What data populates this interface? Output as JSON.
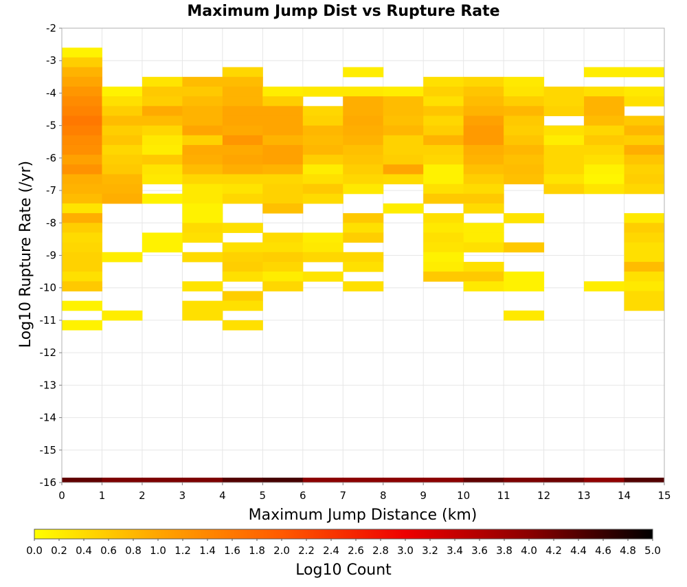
{
  "chart_data": {
    "type": "heatmap",
    "title": "Maximum Jump Dist vs Rupture Rate",
    "xlabel": "Maximum Jump Distance (km)",
    "ylabel": "Log10 Rupture Rate (/yr)",
    "xlim": [
      0,
      15
    ],
    "ylim": [
      -16,
      -2
    ],
    "x_ticks": [
      "0",
      "1",
      "2",
      "3",
      "4",
      "5",
      "6",
      "7",
      "8",
      "9",
      "10",
      "11",
      "12",
      "13",
      "14",
      "15"
    ],
    "y_ticks": [
      "-2",
      "-3",
      "-4",
      "-5",
      "-6",
      "-7",
      "-8",
      "-9",
      "-10",
      "-11",
      "-12",
      "-13",
      "-14",
      "-15",
      "-16"
    ],
    "x_bin_width": 1,
    "y_bin_height": 0.3,
    "grid": true,
    "colorbar": {
      "label": "Log10 Count",
      "range": [
        0,
        5
      ],
      "ticks": [
        "0.0",
        "0.2",
        "0.4",
        "0.6",
        "0.8",
        "1.0",
        "1.2",
        "1.4",
        "1.6",
        "1.8",
        "2.0",
        "2.2",
        "2.4",
        "2.6",
        "2.8",
        "3.0",
        "3.2",
        "3.4",
        "3.6",
        "3.8",
        "4.0",
        "4.2",
        "4.4",
        "4.6",
        "4.8",
        "5.0"
      ],
      "colors": [
        "#ffff00",
        "#ffa500",
        "#ff5a00",
        "#ee0000",
        "#8b0000",
        "#000000"
      ]
    },
    "columns": [
      {
        "x": 0,
        "cells": [
          [
            -2.75,
            0.15
          ],
          [
            -3.05,
            0.55
          ],
          [
            -3.35,
            0.85
          ],
          [
            -3.65,
            1.0
          ],
          [
            -3.95,
            1.2
          ],
          [
            -4.25,
            1.35
          ],
          [
            -4.55,
            1.45
          ],
          [
            -4.85,
            1.6
          ],
          [
            -5.15,
            1.5
          ],
          [
            -5.45,
            1.35
          ],
          [
            -5.75,
            1.3
          ],
          [
            -6.05,
            1.05
          ],
          [
            -6.35,
            1.25
          ],
          [
            -6.65,
            0.9
          ],
          [
            -6.95,
            0.85
          ],
          [
            -7.25,
            0.75
          ],
          [
            -7.55,
            0.3
          ],
          [
            -7.85,
            0.9
          ],
          [
            -8.15,
            0.55
          ],
          [
            -8.45,
            0.4
          ],
          [
            -8.75,
            0.45
          ],
          [
            -9.05,
            0.5
          ],
          [
            -9.35,
            0.5
          ],
          [
            -9.65,
            0.35
          ],
          [
            -9.95,
            0.6
          ],
          [
            -10.55,
            0.15
          ],
          [
            -11.15,
            0.15
          ],
          [
            -16.0,
            4.3
          ]
        ]
      },
      {
        "x": 1,
        "cells": [
          [
            -3.95,
            0.15
          ],
          [
            -4.25,
            0.35
          ],
          [
            -4.55,
            0.55
          ],
          [
            -4.85,
            0.75
          ],
          [
            -5.15,
            0.55
          ],
          [
            -5.45,
            0.65
          ],
          [
            -5.75,
            0.45
          ],
          [
            -6.05,
            0.55
          ],
          [
            -6.35,
            0.6
          ],
          [
            -6.65,
            0.8
          ],
          [
            -6.95,
            0.85
          ],
          [
            -7.25,
            0.9
          ],
          [
            -9.05,
            0.2
          ],
          [
            -10.85,
            0.2
          ],
          [
            -16.0,
            4.1
          ]
        ]
      },
      {
        "x": 2,
        "cells": [
          [
            -3.65,
            0.3
          ],
          [
            -3.95,
            0.6
          ],
          [
            -4.25,
            0.55
          ],
          [
            -4.55,
            0.95
          ],
          [
            -4.85,
            0.75
          ],
          [
            -5.15,
            0.45
          ],
          [
            -5.45,
            0.25
          ],
          [
            -5.75,
            0.2
          ],
          [
            -6.05,
            0.6
          ],
          [
            -6.35,
            0.3
          ],
          [
            -6.65,
            0.25
          ],
          [
            -7.25,
            0.15
          ],
          [
            -8.45,
            0.15
          ],
          [
            -8.75,
            0.15
          ],
          [
            -16.0,
            4.1
          ]
        ]
      },
      {
        "x": 3,
        "cells": [
          [
            -3.65,
            0.75
          ],
          [
            -3.95,
            0.6
          ],
          [
            -4.25,
            0.75
          ],
          [
            -4.55,
            0.85
          ],
          [
            -4.85,
            0.85
          ],
          [
            -5.15,
            1.0
          ],
          [
            -5.45,
            0.5
          ],
          [
            -5.75,
            0.95
          ],
          [
            -6.05,
            0.9
          ],
          [
            -6.35,
            0.75
          ],
          [
            -6.65,
            0.45
          ],
          [
            -6.95,
            0.25
          ],
          [
            -7.25,
            0.25
          ],
          [
            -7.55,
            0.15
          ],
          [
            -7.85,
            0.15
          ],
          [
            -8.15,
            0.4
          ],
          [
            -8.45,
            0.35
          ],
          [
            -9.05,
            0.4
          ],
          [
            -9.95,
            0.3
          ],
          [
            -10.55,
            0.35
          ],
          [
            -10.85,
            0.35
          ],
          [
            -16.0,
            4.1
          ]
        ]
      },
      {
        "x": 4,
        "cells": [
          [
            -3.35,
            0.45
          ],
          [
            -3.65,
            0.75
          ],
          [
            -3.95,
            0.85
          ],
          [
            -4.25,
            0.85
          ],
          [
            -4.55,
            1.0
          ],
          [
            -4.85,
            1.0
          ],
          [
            -5.15,
            0.95
          ],
          [
            -5.45,
            1.2
          ],
          [
            -5.75,
            0.95
          ],
          [
            -6.05,
            1.0
          ],
          [
            -6.35,
            0.9
          ],
          [
            -6.65,
            0.45
          ],
          [
            -6.95,
            0.3
          ],
          [
            -7.25,
            0.45
          ],
          [
            -8.15,
            0.35
          ],
          [
            -8.75,
            0.35
          ],
          [
            -9.05,
            0.5
          ],
          [
            -9.35,
            0.55
          ],
          [
            -9.65,
            0.35
          ],
          [
            -10.25,
            0.55
          ],
          [
            -10.55,
            0.35
          ],
          [
            -11.15,
            0.35
          ],
          [
            -16.0,
            4.4
          ]
        ]
      },
      {
        "x": 5,
        "cells": [
          [
            -3.95,
            0.2
          ],
          [
            -4.25,
            0.55
          ],
          [
            -4.55,
            1.0
          ],
          [
            -4.85,
            1.0
          ],
          [
            -5.15,
            1.0
          ],
          [
            -5.45,
            0.85
          ],
          [
            -5.75,
            1.05
          ],
          [
            -6.05,
            1.05
          ],
          [
            -6.35,
            0.85
          ],
          [
            -6.65,
            0.45
          ],
          [
            -6.95,
            0.5
          ],
          [
            -7.25,
            0.5
          ],
          [
            -7.55,
            0.7
          ],
          [
            -8.45,
            0.4
          ],
          [
            -8.75,
            0.35
          ],
          [
            -9.05,
            0.55
          ],
          [
            -9.35,
            0.45
          ],
          [
            -9.65,
            0.2
          ],
          [
            -9.95,
            0.45
          ],
          [
            -16.0,
            4.5
          ]
        ]
      },
      {
        "x": 6,
        "cells": [
          [
            -3.95,
            0.25
          ],
          [
            -4.55,
            0.45
          ],
          [
            -4.85,
            0.5
          ],
          [
            -5.15,
            0.8
          ],
          [
            -5.45,
            0.75
          ],
          [
            -5.75,
            0.8
          ],
          [
            -6.05,
            0.55
          ],
          [
            -6.35,
            0.2
          ],
          [
            -6.65,
            0.35
          ],
          [
            -6.95,
            0.6
          ],
          [
            -7.25,
            0.4
          ],
          [
            -8.45,
            0.2
          ],
          [
            -8.75,
            0.25
          ],
          [
            -9.05,
            0.45
          ],
          [
            -9.65,
            0.3
          ],
          [
            -16.0,
            4.0
          ]
        ]
      },
      {
        "x": 7,
        "cells": [
          [
            -3.35,
            0.2
          ],
          [
            -3.95,
            0.25
          ],
          [
            -4.25,
            0.9
          ],
          [
            -4.55,
            0.9
          ],
          [
            -4.85,
            0.95
          ],
          [
            -5.15,
            0.9
          ],
          [
            -5.45,
            0.85
          ],
          [
            -5.75,
            0.7
          ],
          [
            -6.05,
            0.65
          ],
          [
            -6.35,
            0.55
          ],
          [
            -6.65,
            0.45
          ],
          [
            -6.95,
            0.25
          ],
          [
            -7.85,
            0.6
          ],
          [
            -8.15,
            0.35
          ],
          [
            -8.45,
            0.55
          ],
          [
            -9.05,
            0.45
          ],
          [
            -9.35,
            0.35
          ],
          [
            -9.95,
            0.35
          ],
          [
            -16.0,
            4.0
          ]
        ]
      },
      {
        "x": 8,
        "cells": [
          [
            -3.95,
            0.2
          ],
          [
            -4.25,
            0.75
          ],
          [
            -4.55,
            0.75
          ],
          [
            -4.85,
            0.7
          ],
          [
            -5.15,
            0.8
          ],
          [
            -5.45,
            0.5
          ],
          [
            -5.75,
            0.5
          ],
          [
            -6.05,
            0.55
          ],
          [
            -6.35,
            1.0
          ],
          [
            -6.65,
            0.4
          ],
          [
            -7.55,
            0.2
          ],
          [
            -16.0,
            4.0
          ]
        ]
      },
      {
        "x": 9,
        "cells": [
          [
            -3.65,
            0.35
          ],
          [
            -3.95,
            0.5
          ],
          [
            -4.25,
            0.35
          ],
          [
            -4.55,
            0.65
          ],
          [
            -4.85,
            0.45
          ],
          [
            -5.15,
            0.55
          ],
          [
            -5.45,
            0.85
          ],
          [
            -5.75,
            0.5
          ],
          [
            -6.05,
            0.45
          ],
          [
            -6.35,
            0.15
          ],
          [
            -6.65,
            0.15
          ],
          [
            -6.95,
            0.35
          ],
          [
            -7.25,
            0.6
          ],
          [
            -7.85,
            0.35
          ],
          [
            -8.15,
            0.25
          ],
          [
            -8.45,
            0.35
          ],
          [
            -8.75,
            0.3
          ],
          [
            -9.05,
            0.15
          ],
          [
            -9.35,
            0.2
          ],
          [
            -9.65,
            0.6
          ],
          [
            -16.0,
            4.0
          ]
        ]
      },
      {
        "x": 10,
        "cells": [
          [
            -3.65,
            0.45
          ],
          [
            -3.95,
            0.65
          ],
          [
            -4.25,
            0.75
          ],
          [
            -4.55,
            0.85
          ],
          [
            -4.85,
            1.05
          ],
          [
            -5.15,
            1.15
          ],
          [
            -5.45,
            1.15
          ],
          [
            -5.75,
            0.9
          ],
          [
            -6.05,
            0.85
          ],
          [
            -6.35,
            0.7
          ],
          [
            -6.65,
            0.55
          ],
          [
            -6.95,
            0.4
          ],
          [
            -7.25,
            0.6
          ],
          [
            -7.55,
            0.4
          ],
          [
            -8.15,
            0.2
          ],
          [
            -8.45,
            0.2
          ],
          [
            -8.75,
            0.35
          ],
          [
            -9.35,
            0.35
          ],
          [
            -9.65,
            0.6
          ],
          [
            -9.95,
            0.25
          ],
          [
            -16.0,
            4.3
          ]
        ]
      },
      {
        "x": 11,
        "cells": [
          [
            -3.65,
            0.25
          ],
          [
            -3.95,
            0.3
          ],
          [
            -4.25,
            0.55
          ],
          [
            -4.55,
            0.8
          ],
          [
            -4.85,
            0.6
          ],
          [
            -5.15,
            0.55
          ],
          [
            -5.45,
            0.65
          ],
          [
            -5.75,
            0.8
          ],
          [
            -6.05,
            0.7
          ],
          [
            -6.35,
            0.75
          ],
          [
            -6.65,
            0.7
          ],
          [
            -7.85,
            0.3
          ],
          [
            -8.75,
            0.6
          ],
          [
            -9.65,
            0.15
          ],
          [
            -9.95,
            0.15
          ],
          [
            -10.85,
            0.25
          ],
          [
            -16.0,
            4.1
          ]
        ]
      },
      {
        "x": 12,
        "cells": [
          [
            -3.95,
            0.45
          ],
          [
            -4.25,
            0.45
          ],
          [
            -4.55,
            0.5
          ],
          [
            -5.15,
            0.35
          ],
          [
            -5.45,
            0.2
          ],
          [
            -5.75,
            0.45
          ],
          [
            -6.05,
            0.45
          ],
          [
            -6.35,
            0.45
          ],
          [
            -6.65,
            0.3
          ],
          [
            -6.95,
            0.5
          ],
          [
            -16.0,
            4.2
          ]
        ]
      },
      {
        "x": 13,
        "cells": [
          [
            -3.35,
            0.2
          ],
          [
            -3.95,
            0.35
          ],
          [
            -4.25,
            0.85
          ],
          [
            -4.55,
            0.85
          ],
          [
            -4.85,
            0.75
          ],
          [
            -5.15,
            0.45
          ],
          [
            -5.45,
            0.6
          ],
          [
            -5.75,
            0.45
          ],
          [
            -6.05,
            0.35
          ],
          [
            -6.35,
            0.15
          ],
          [
            -6.65,
            0.1
          ],
          [
            -6.95,
            0.3
          ],
          [
            -9.95,
            0.2
          ],
          [
            -16.0,
            3.95
          ]
        ]
      },
      {
        "x": 14,
        "cells": [
          [
            -3.35,
            0.2
          ],
          [
            -3.95,
            0.25
          ],
          [
            -4.25,
            0.35
          ],
          [
            -4.85,
            0.6
          ],
          [
            -5.15,
            0.8
          ],
          [
            -5.45,
            0.55
          ],
          [
            -5.75,
            0.9
          ],
          [
            -6.05,
            0.65
          ],
          [
            -6.35,
            0.5
          ],
          [
            -6.65,
            0.55
          ],
          [
            -6.95,
            0.45
          ],
          [
            -7.85,
            0.25
          ],
          [
            -8.15,
            0.55
          ],
          [
            -8.45,
            0.45
          ],
          [
            -8.75,
            0.35
          ],
          [
            -9.05,
            0.35
          ],
          [
            -9.35,
            0.75
          ],
          [
            -9.65,
            0.35
          ],
          [
            -9.95,
            0.25
          ],
          [
            -10.25,
            0.4
          ],
          [
            -10.55,
            0.4
          ],
          [
            -16.0,
            4.4
          ]
        ]
      }
    ]
  }
}
